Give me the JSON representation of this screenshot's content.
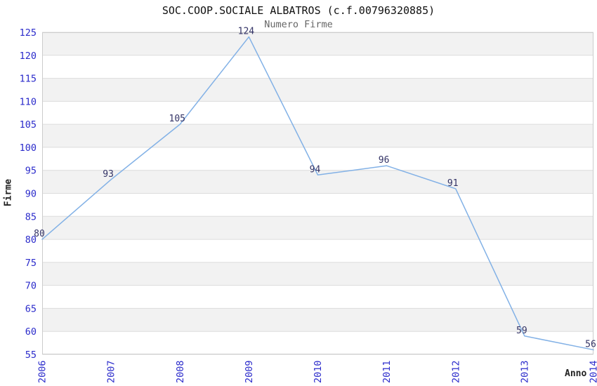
{
  "header": {
    "title": "SOC.COOP.SOCIALE ALBATROS (c.f.00796320885)",
    "subtitle": "Numero Firme"
  },
  "chart_data": {
    "type": "line",
    "title": "SOC.COOP.SOCIALE ALBATROS (c.f.00796320885)",
    "subtitle": "Numero Firme",
    "categories": [
      "2006",
      "2007",
      "2008",
      "2009",
      "2010",
      "2011",
      "2012",
      "2013",
      "2014"
    ],
    "values": [
      80,
      93,
      105,
      124,
      94,
      96,
      91,
      59,
      56
    ],
    "xlabel": "Anno",
    "ylabel": "Firme",
    "ylim": [
      55,
      125
    ],
    "ytick_step": 5,
    "yticks": [
      55,
      60,
      65,
      70,
      75,
      80,
      85,
      90,
      95,
      100,
      105,
      110,
      115,
      120,
      125
    ],
    "grid": "horizontal-bands-alternating",
    "legend_position": "none",
    "colors": {
      "line": "#82B1E6",
      "band_gray": "#F2F2F2",
      "band_white": "#FFFFFF",
      "gridline": "#DCDCDC",
      "plot_border": "#CCCCCC",
      "tick_label": "#2B2BCB",
      "value_label": "#333366",
      "title": "#111111",
      "subtitle": "#666666",
      "axis_title": "#222222"
    }
  }
}
